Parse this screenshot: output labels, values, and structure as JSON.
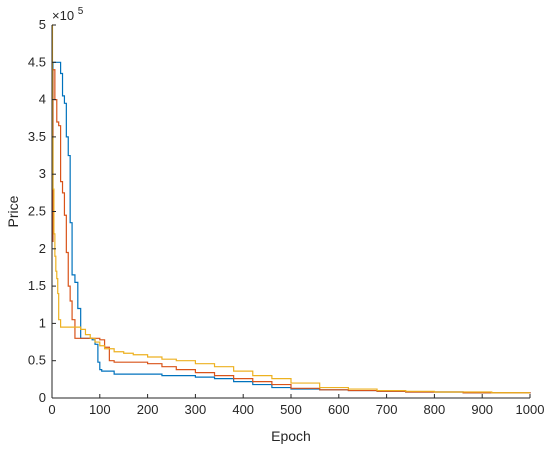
{
  "chart_data": {
    "type": "line",
    "title": "",
    "xlabel": "Epoch",
    "ylabel": "Price",
    "y_exponent_label": "×10",
    "y_exponent_power": "5",
    "xlim": [
      0,
      1000
    ],
    "ylim": [
      0,
      5
    ],
    "y_scale_factor": 100000,
    "grid": false,
    "legend": "none",
    "x_ticks": [
      0,
      100,
      200,
      300,
      400,
      500,
      600,
      700,
      800,
      900,
      1000
    ],
    "x_tick_labels": [
      "0",
      "100",
      "200",
      "300",
      "400",
      "500",
      "600",
      "700",
      "800",
      "900",
      "1000"
    ],
    "y_ticks": [
      0,
      0.5,
      1,
      1.5,
      2,
      2.5,
      3,
      3.5,
      4,
      4.5,
      5
    ],
    "y_tick_labels": [
      "0",
      "0.5",
      "1",
      "1.5",
      "2",
      "2.5",
      "3",
      "3.5",
      "4",
      "4.5",
      "5"
    ],
    "series": [
      {
        "color": "#0072BD",
        "x": [
          0,
          2,
          4,
          8,
          12,
          18,
          22,
          26,
          30,
          34,
          38,
          42,
          48,
          54,
          60,
          66,
          72,
          78,
          84,
          90,
          96,
          100,
          104,
          110,
          120,
          130,
          140,
          160,
          180,
          200,
          230,
          260,
          300,
          340,
          380,
          420,
          460,
          500,
          560,
          620,
          680,
          740,
          800,
          860,
          920,
          1000
        ],
        "y": [
          2.1,
          4.5,
          4.5,
          4.5,
          4.5,
          4.35,
          4.05,
          3.95,
          3.5,
          3.25,
          2.35,
          1.65,
          1.55,
          1.2,
          0.8,
          0.8,
          0.8,
          0.8,
          0.78,
          0.72,
          0.48,
          0.38,
          0.36,
          0.36,
          0.36,
          0.32,
          0.32,
          0.32,
          0.32,
          0.32,
          0.3,
          0.3,
          0.28,
          0.26,
          0.22,
          0.18,
          0.14,
          0.12,
          0.11,
          0.1,
          0.09,
          0.08,
          0.08,
          0.07,
          0.07,
          0.06
        ]
      },
      {
        "color": "#D95319",
        "x": [
          0,
          2,
          4,
          6,
          10,
          14,
          18,
          22,
          26,
          30,
          34,
          38,
          42,
          48,
          54,
          60,
          70,
          80,
          90,
          100,
          110,
          120,
          130,
          150,
          170,
          200,
          230,
          260,
          300,
          340,
          380,
          420,
          460,
          500,
          560,
          620,
          680,
          740,
          800,
          860,
          920,
          1000
        ],
        "y": [
          2.1,
          4.4,
          4.4,
          4.0,
          3.7,
          3.65,
          2.9,
          2.75,
          2.45,
          1.95,
          1.5,
          1.3,
          1.05,
          0.8,
          0.8,
          0.8,
          0.8,
          0.8,
          0.8,
          0.78,
          0.68,
          0.5,
          0.48,
          0.48,
          0.48,
          0.46,
          0.42,
          0.38,
          0.34,
          0.3,
          0.26,
          0.22,
          0.18,
          0.13,
          0.11,
          0.1,
          0.09,
          0.08,
          0.08,
          0.07,
          0.07,
          0.06
        ]
      },
      {
        "color": "#EDB120",
        "x": [
          0,
          1,
          2,
          4,
          6,
          8,
          10,
          12,
          14,
          18,
          22,
          26,
          30,
          36,
          42,
          50,
          60,
          70,
          80,
          90,
          100,
          110,
          130,
          150,
          170,
          200,
          230,
          260,
          300,
          340,
          380,
          420,
          460,
          500,
          560,
          620,
          680,
          740,
          800,
          860,
          920,
          1000
        ],
        "y": [
          5.0,
          3.5,
          2.8,
          2.2,
          1.9,
          1.7,
          1.6,
          1.4,
          1.05,
          0.95,
          0.95,
          0.95,
          0.95,
          0.95,
          0.95,
          0.95,
          0.92,
          0.85,
          0.8,
          0.75,
          0.7,
          0.66,
          0.62,
          0.6,
          0.58,
          0.55,
          0.52,
          0.5,
          0.46,
          0.42,
          0.36,
          0.3,
          0.26,
          0.2,
          0.14,
          0.12,
          0.1,
          0.09,
          0.08,
          0.08,
          0.07,
          0.07
        ]
      }
    ]
  }
}
